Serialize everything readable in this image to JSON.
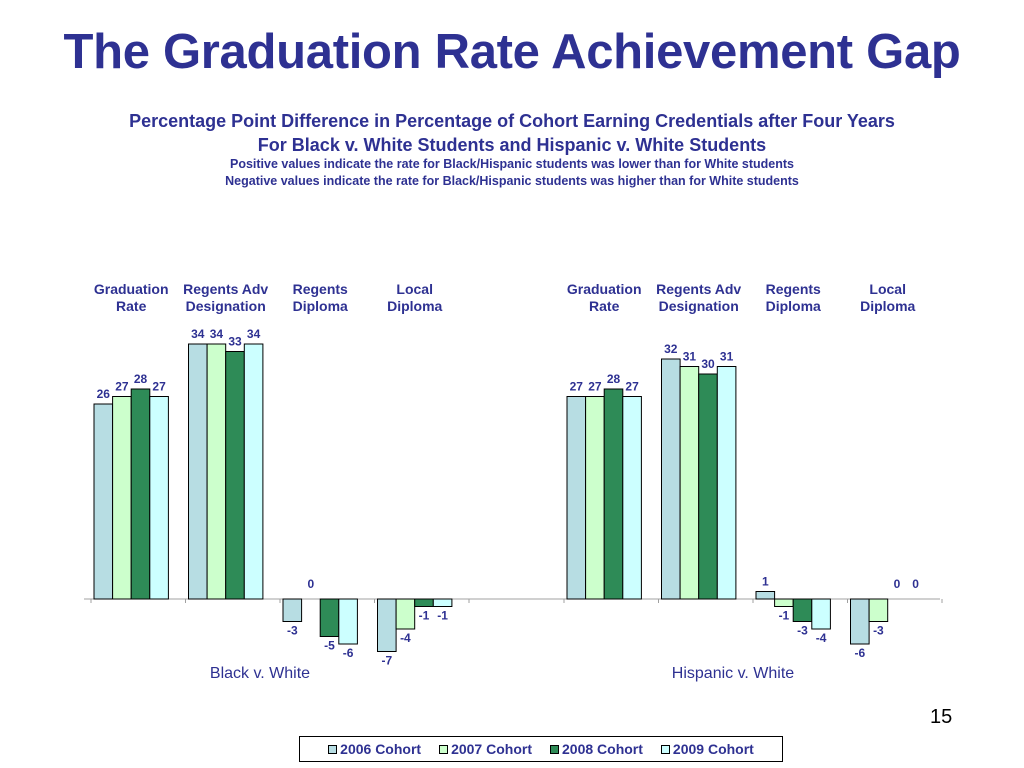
{
  "slide": {
    "title": "The Graduation Rate Achievement Gap",
    "subtitle_line1": "Percentage Point Difference in Percentage of Cohort Earning Credentials after Four Years",
    "subtitle_line2": "For Black v. White Students and Hispanic v. White Students",
    "note_line1": "Positive values indicate the rate for Black/Hispanic students was lower than for White students",
    "note_line2": "Negative values indicate the rate for Black/Hispanic students was higher than for White students",
    "page_number": "15"
  },
  "colors": {
    "title": "#2e3192",
    "series": [
      "#b7dde3",
      "#ccffcc",
      "#2e8b57",
      "#ccffff"
    ],
    "bar_outline": "#000000"
  },
  "chart_data": {
    "type": "bar",
    "title": "Percentage Point Difference in Percentage of Cohort Earning Credentials after Four Years",
    "categories": [
      [
        "Graduation",
        "Rate"
      ],
      [
        "Regents Adv",
        "Designation"
      ],
      [
        "Regents",
        "Diploma"
      ],
      [
        "Local",
        "Diploma"
      ]
    ],
    "groups": [
      {
        "name": "Black v. White",
        "series": [
          {
            "name": "2006 Cohort",
            "values": [
              26,
              34,
              -3,
              -7
            ]
          },
          {
            "name": "2007 Cohort",
            "values": [
              27,
              34,
              0,
              -4
            ]
          },
          {
            "name": "2008 Cohort",
            "values": [
              28,
              33,
              -5,
              -1
            ]
          },
          {
            "name": "2009 Cohort",
            "values": [
              27,
              34,
              -6,
              -1
            ]
          }
        ]
      },
      {
        "name": "Hispanic v. White",
        "series": [
          {
            "name": "2006 Cohort",
            "values": [
              27,
              32,
              1,
              -6
            ]
          },
          {
            "name": "2007 Cohort",
            "values": [
              27,
              31,
              -1,
              -3
            ]
          },
          {
            "name": "2008 Cohort",
            "values": [
              28,
              30,
              -3,
              0
            ]
          },
          {
            "name": "2009 Cohort",
            "values": [
              27,
              31,
              -4,
              0
            ]
          }
        ]
      }
    ],
    "legend": [
      "2006 Cohort",
      "2007 Cohort",
      "2008 Cohort",
      "2009 Cohort"
    ],
    "ylim": [
      -8,
      35
    ],
    "legend_position": "bottom",
    "xlabel": "",
    "ylabel": ""
  }
}
